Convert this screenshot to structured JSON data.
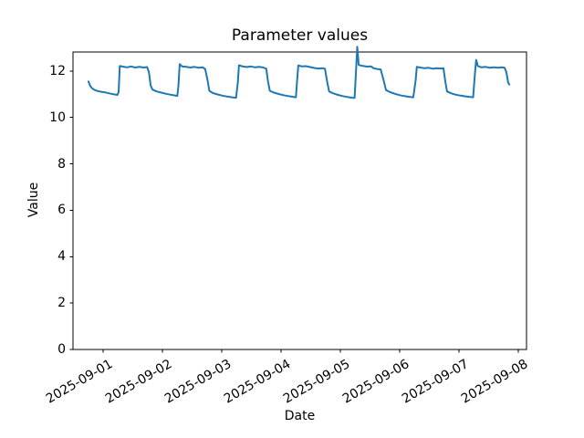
{
  "chart_data": {
    "type": "line",
    "title": "Parameter values",
    "xlabel": "Date",
    "ylabel": "Value",
    "x_tick_labels": [
      "2025-09-01",
      "2025-09-02",
      "2025-09-03",
      "2025-09-04",
      "2025-09-05",
      "2025-09-06",
      "2025-09-07",
      "2025-09-08"
    ],
    "y_ticks": [
      0,
      2,
      4,
      6,
      8,
      10,
      12
    ],
    "ylim": [
      0,
      12.82
    ],
    "xlim_days": [
      -0.51,
      7.14
    ],
    "grid": false,
    "legend": false,
    "line_color": "#1f77b4",
    "axis_color": "#000000",
    "background": "#ffffff",
    "series": [
      {
        "name": "parameter",
        "x_unit": "days since 2025-09-01 00:00",
        "points": [
          [
            -0.25,
            11.55
          ],
          [
            -0.22,
            11.37
          ],
          [
            -0.19,
            11.26
          ],
          [
            -0.15,
            11.19
          ],
          [
            -0.1,
            11.14
          ],
          [
            -0.04,
            11.11
          ],
          [
            0.03,
            11.08
          ],
          [
            0.1,
            11.04
          ],
          [
            0.17,
            11.0
          ],
          [
            0.24,
            10.97
          ],
          [
            0.26,
            11.1
          ],
          [
            0.28,
            12.22
          ],
          [
            0.33,
            12.19
          ],
          [
            0.4,
            12.16
          ],
          [
            0.47,
            12.2
          ],
          [
            0.54,
            12.15
          ],
          [
            0.61,
            12.18
          ],
          [
            0.68,
            12.15
          ],
          [
            0.74,
            12.17
          ],
          [
            0.77,
            11.95
          ],
          [
            0.8,
            11.38
          ],
          [
            0.83,
            11.2
          ],
          [
            0.9,
            11.12
          ],
          [
            0.98,
            11.07
          ],
          [
            1.06,
            11.02
          ],
          [
            1.14,
            10.98
          ],
          [
            1.21,
            10.95
          ],
          [
            1.25,
            10.93
          ],
          [
            1.27,
            11.4
          ],
          [
            1.29,
            12.3
          ],
          [
            1.33,
            12.2
          ],
          [
            1.4,
            12.18
          ],
          [
            1.47,
            12.15
          ],
          [
            1.54,
            12.18
          ],
          [
            1.61,
            12.14
          ],
          [
            1.68,
            12.16
          ],
          [
            1.72,
            12.08
          ],
          [
            1.76,
            11.6
          ],
          [
            1.79,
            11.15
          ],
          [
            1.85,
            11.05
          ],
          [
            1.93,
            10.99
          ],
          [
            2.01,
            10.94
          ],
          [
            2.09,
            10.9
          ],
          [
            2.17,
            10.87
          ],
          [
            2.24,
            10.85
          ],
          [
            2.27,
            11.5
          ],
          [
            2.29,
            12.25
          ],
          [
            2.35,
            12.2
          ],
          [
            2.42,
            12.17
          ],
          [
            2.49,
            12.2
          ],
          [
            2.56,
            12.16
          ],
          [
            2.63,
            12.18
          ],
          [
            2.7,
            12.15
          ],
          [
            2.75,
            12.1
          ],
          [
            2.78,
            11.55
          ],
          [
            2.81,
            11.15
          ],
          [
            2.88,
            11.07
          ],
          [
            2.96,
            11.01
          ],
          [
            3.04,
            10.96
          ],
          [
            3.12,
            10.92
          ],
          [
            3.2,
            10.89
          ],
          [
            3.25,
            10.87
          ],
          [
            3.27,
            11.6
          ],
          [
            3.29,
            12.24
          ],
          [
            3.35,
            12.2
          ],
          [
            3.42,
            12.21
          ],
          [
            3.49,
            12.17
          ],
          [
            3.56,
            12.13
          ],
          [
            3.63,
            12.11
          ],
          [
            3.7,
            12.12
          ],
          [
            3.74,
            12.1
          ],
          [
            3.78,
            11.5
          ],
          [
            3.81,
            11.12
          ],
          [
            3.88,
            11.04
          ],
          [
            3.96,
            10.97
          ],
          [
            4.04,
            10.92
          ],
          [
            4.12,
            10.88
          ],
          [
            4.2,
            10.85
          ],
          [
            4.24,
            10.84
          ],
          [
            4.26,
            11.8
          ],
          [
            4.285,
            13.05
          ],
          [
            4.31,
            12.26
          ],
          [
            4.38,
            12.22
          ],
          [
            4.45,
            12.19
          ],
          [
            4.52,
            12.2
          ],
          [
            4.56,
            12.12
          ],
          [
            4.62,
            12.09
          ],
          [
            4.68,
            12.07
          ],
          [
            4.73,
            11.6
          ],
          [
            4.77,
            11.18
          ],
          [
            4.84,
            11.09
          ],
          [
            4.92,
            11.02
          ],
          [
            5.0,
            10.96
          ],
          [
            5.08,
            10.92
          ],
          [
            5.16,
            10.89
          ],
          [
            5.23,
            10.87
          ],
          [
            5.27,
            11.6
          ],
          [
            5.29,
            12.18
          ],
          [
            5.35,
            12.15
          ],
          [
            5.42,
            12.12
          ],
          [
            5.49,
            12.14
          ],
          [
            5.56,
            12.1
          ],
          [
            5.63,
            12.12
          ],
          [
            5.7,
            12.11
          ],
          [
            5.74,
            12.12
          ],
          [
            5.77,
            11.55
          ],
          [
            5.8,
            11.12
          ],
          [
            5.87,
            11.04
          ],
          [
            5.95,
            10.98
          ],
          [
            6.03,
            10.94
          ],
          [
            6.11,
            10.91
          ],
          [
            6.19,
            10.88
          ],
          [
            6.24,
            10.87
          ],
          [
            6.27,
            11.9
          ],
          [
            6.29,
            12.48
          ],
          [
            6.32,
            12.22
          ],
          [
            6.38,
            12.16
          ],
          [
            6.45,
            12.18
          ],
          [
            6.52,
            12.14
          ],
          [
            6.59,
            12.16
          ],
          [
            6.66,
            12.14
          ],
          [
            6.72,
            12.16
          ],
          [
            6.77,
            12.14
          ],
          [
            6.8,
            11.95
          ],
          [
            6.83,
            11.5
          ],
          [
            6.85,
            11.42
          ]
        ]
      }
    ]
  }
}
